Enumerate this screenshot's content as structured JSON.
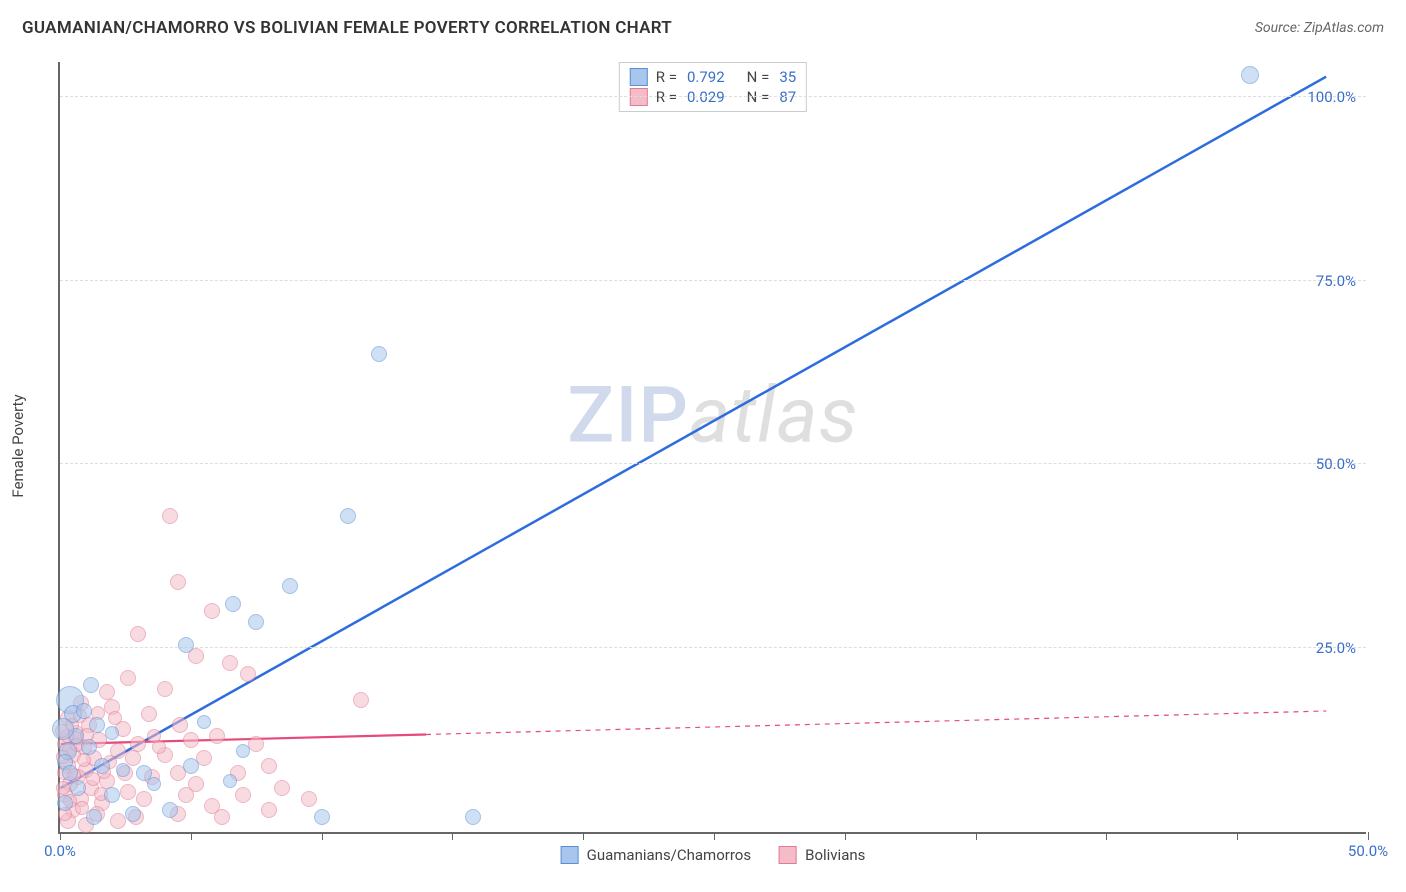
{
  "title": "GUAMANIAN/CHAMORRO VS BOLIVIAN FEMALE POVERTY CORRELATION CHART",
  "source": "Source: ZipAtlas.com",
  "ylabel": "Female Poverty",
  "watermark": {
    "part1": "ZIP",
    "part2": "atlas"
  },
  "chart": {
    "type": "scatter",
    "background_color": "#ffffff",
    "grid_color": "#dddddd",
    "axis_color": "#666666",
    "tick_label_color": "#3b6fc9",
    "xlim": [
      0,
      50
    ],
    "ylim": [
      0,
      105
    ],
    "xticks": [
      0,
      5,
      10,
      15,
      20,
      25,
      30,
      35,
      40,
      45,
      50
    ],
    "xtick_labels": {
      "0": "0.0%",
      "50": "50.0%"
    },
    "yticks": [
      25,
      50,
      75,
      100
    ],
    "ytick_labels": {
      "25": "25.0%",
      "50": "50.0%",
      "75": "75.0%",
      "100": "100.0%"
    },
    "series": [
      {
        "name": "Guamanians/Chamorros",
        "fill_color": "#a8c5ec",
        "stroke_color": "#5b8fd6",
        "fill_opacity": 0.55,
        "R": "0.792",
        "N": "35",
        "trend": {
          "x1": 0,
          "y1": 6,
          "x2": 48.5,
          "y2": 103,
          "color": "#2d6cdf",
          "width": 2.5,
          "dash_from_x": null
        },
        "points": [
          {
            "x": 45.5,
            "y": 103,
            "r": 9
          },
          {
            "x": 12.2,
            "y": 65,
            "r": 8
          },
          {
            "x": 11.0,
            "y": 43,
            "r": 8
          },
          {
            "x": 8.8,
            "y": 33.5,
            "r": 8
          },
          {
            "x": 6.6,
            "y": 31,
            "r": 8
          },
          {
            "x": 7.5,
            "y": 28.5,
            "r": 8
          },
          {
            "x": 4.8,
            "y": 25.5,
            "r": 8
          },
          {
            "x": 1.2,
            "y": 20,
            "r": 8
          },
          {
            "x": 0.4,
            "y": 18,
            "r": 14
          },
          {
            "x": 0.5,
            "y": 16,
            "r": 9
          },
          {
            "x": 0.9,
            "y": 16.5,
            "r": 8
          },
          {
            "x": 1.4,
            "y": 14.5,
            "r": 8
          },
          {
            "x": 0.6,
            "y": 13,
            "r": 8
          },
          {
            "x": 2.0,
            "y": 13.5,
            "r": 7
          },
          {
            "x": 0.3,
            "y": 11,
            "r": 9
          },
          {
            "x": 1.1,
            "y": 11.5,
            "r": 8
          },
          {
            "x": 0.2,
            "y": 9.5,
            "r": 8
          },
          {
            "x": 1.6,
            "y": 9,
            "r": 8
          },
          {
            "x": 0.4,
            "y": 8,
            "r": 8
          },
          {
            "x": 2.4,
            "y": 8.5,
            "r": 7
          },
          {
            "x": 3.2,
            "y": 8,
            "r": 8
          },
          {
            "x": 0.7,
            "y": 6,
            "r": 8
          },
          {
            "x": 2.0,
            "y": 5,
            "r": 8
          },
          {
            "x": 3.6,
            "y": 6.5,
            "r": 7
          },
          {
            "x": 5.0,
            "y": 9,
            "r": 8
          },
          {
            "x": 4.2,
            "y": 3,
            "r": 8
          },
          {
            "x": 2.8,
            "y": 2.5,
            "r": 8
          },
          {
            "x": 1.3,
            "y": 2,
            "r": 8
          },
          {
            "x": 10.0,
            "y": 2,
            "r": 8
          },
          {
            "x": 15.8,
            "y": 2,
            "r": 8
          },
          {
            "x": 6.5,
            "y": 7,
            "r": 7
          },
          {
            "x": 7.0,
            "y": 11,
            "r": 7
          },
          {
            "x": 5.5,
            "y": 15,
            "r": 7
          },
          {
            "x": 0.1,
            "y": 14,
            "r": 11
          },
          {
            "x": 0.2,
            "y": 4,
            "r": 8
          }
        ]
      },
      {
        "name": "Bolivians",
        "fill_color": "#f4bcc9",
        "stroke_color": "#e27a93",
        "fill_opacity": 0.55,
        "R": "0.029",
        "N": "87",
        "trend": {
          "x1": 0,
          "y1": 12,
          "x2": 48.5,
          "y2": 16.5,
          "color": "#e64a7a",
          "width": 2.2,
          "dash_from_x": 14
        },
        "points": [
          {
            "x": 4.2,
            "y": 43,
            "r": 8
          },
          {
            "x": 4.5,
            "y": 34,
            "r": 8
          },
          {
            "x": 5.8,
            "y": 30,
            "r": 8
          },
          {
            "x": 3.0,
            "y": 27,
            "r": 8
          },
          {
            "x": 5.2,
            "y": 24,
            "r": 8
          },
          {
            "x": 6.5,
            "y": 23,
            "r": 8
          },
          {
            "x": 2.6,
            "y": 21,
            "r": 8
          },
          {
            "x": 1.8,
            "y": 19,
            "r": 8
          },
          {
            "x": 4.0,
            "y": 19.5,
            "r": 8
          },
          {
            "x": 7.2,
            "y": 21.5,
            "r": 8
          },
          {
            "x": 0.8,
            "y": 17.5,
            "r": 8
          },
          {
            "x": 2.0,
            "y": 17,
            "r": 8
          },
          {
            "x": 3.4,
            "y": 16,
            "r": 8
          },
          {
            "x": 11.5,
            "y": 18,
            "r": 8
          },
          {
            "x": 0.3,
            "y": 15.5,
            "r": 8
          },
          {
            "x": 1.1,
            "y": 14.5,
            "r": 8
          },
          {
            "x": 2.4,
            "y": 14,
            "r": 8
          },
          {
            "x": 4.6,
            "y": 14.5,
            "r": 8
          },
          {
            "x": 6.0,
            "y": 13,
            "r": 8
          },
          {
            "x": 0.6,
            "y": 13.5,
            "r": 8
          },
          {
            "x": 1.5,
            "y": 12.5,
            "r": 8
          },
          {
            "x": 3.0,
            "y": 12,
            "r": 8
          },
          {
            "x": 5.0,
            "y": 12.5,
            "r": 8
          },
          {
            "x": 7.5,
            "y": 12,
            "r": 8
          },
          {
            "x": 0.2,
            "y": 12,
            "r": 8
          },
          {
            "x": 0.9,
            "y": 11.5,
            "r": 8
          },
          {
            "x": 2.2,
            "y": 11,
            "r": 8
          },
          {
            "x": 4.0,
            "y": 10.5,
            "r": 8
          },
          {
            "x": 0.5,
            "y": 10.5,
            "r": 8
          },
          {
            "x": 1.3,
            "y": 10,
            "r": 8
          },
          {
            "x": 2.8,
            "y": 10,
            "r": 8
          },
          {
            "x": 5.5,
            "y": 10,
            "r": 8
          },
          {
            "x": 8.0,
            "y": 9,
            "r": 8
          },
          {
            "x": 0.3,
            "y": 9,
            "r": 8
          },
          {
            "x": 1.0,
            "y": 8.5,
            "r": 8
          },
          {
            "x": 2.5,
            "y": 8,
            "r": 8
          },
          {
            "x": 4.5,
            "y": 8,
            "r": 8
          },
          {
            "x": 6.8,
            "y": 8,
            "r": 8
          },
          {
            "x": 0.7,
            "y": 7.5,
            "r": 8
          },
          {
            "x": 1.8,
            "y": 7,
            "r": 8
          },
          {
            "x": 3.5,
            "y": 7.5,
            "r": 8
          },
          {
            "x": 5.2,
            "y": 6.5,
            "r": 8
          },
          {
            "x": 8.5,
            "y": 6,
            "r": 8
          },
          {
            "x": 0.4,
            "y": 6.5,
            "r": 8
          },
          {
            "x": 1.2,
            "y": 6,
            "r": 8
          },
          {
            "x": 2.6,
            "y": 5.5,
            "r": 8
          },
          {
            "x": 4.8,
            "y": 5,
            "r": 8
          },
          {
            "x": 7.0,
            "y": 5,
            "r": 8
          },
          {
            "x": 9.5,
            "y": 4.5,
            "r": 8
          },
          {
            "x": 0.2,
            "y": 5,
            "r": 8
          },
          {
            "x": 0.8,
            "y": 4.5,
            "r": 8
          },
          {
            "x": 1.6,
            "y": 4,
            "r": 8
          },
          {
            "x": 3.2,
            "y": 4.5,
            "r": 8
          },
          {
            "x": 5.8,
            "y": 3.5,
            "r": 8
          },
          {
            "x": 8.0,
            "y": 3,
            "r": 8
          },
          {
            "x": 0.5,
            "y": 3,
            "r": 8
          },
          {
            "x": 1.4,
            "y": 2.5,
            "r": 8
          },
          {
            "x": 2.9,
            "y": 2,
            "r": 8
          },
          {
            "x": 4.5,
            "y": 2.5,
            "r": 8
          },
          {
            "x": 6.2,
            "y": 2,
            "r": 8
          },
          {
            "x": 0.3,
            "y": 1.5,
            "r": 8
          },
          {
            "x": 1.0,
            "y": 1,
            "r": 8
          },
          {
            "x": 2.2,
            "y": 1.5,
            "r": 8
          },
          {
            "x": 0.6,
            "y": 12.8,
            "r": 7
          },
          {
            "x": 1.9,
            "y": 9.5,
            "r": 7
          },
          {
            "x": 3.8,
            "y": 11.5,
            "r": 7
          },
          {
            "x": 0.15,
            "y": 8,
            "r": 7
          },
          {
            "x": 0.1,
            "y": 6,
            "r": 7
          },
          {
            "x": 0.25,
            "y": 13,
            "r": 7
          },
          {
            "x": 1.05,
            "y": 13.2,
            "r": 7
          },
          {
            "x": 2.1,
            "y": 15.5,
            "r": 7
          },
          {
            "x": 3.6,
            "y": 13,
            "r": 7
          },
          {
            "x": 0.45,
            "y": 14.5,
            "r": 7
          },
          {
            "x": 0.75,
            "y": 15.8,
            "r": 7
          },
          {
            "x": 1.45,
            "y": 16.2,
            "r": 7
          },
          {
            "x": 0.35,
            "y": 11.2,
            "r": 7
          },
          {
            "x": 0.9,
            "y": 9.8,
            "r": 7
          },
          {
            "x": 1.7,
            "y": 8.2,
            "r": 7
          },
          {
            "x": 0.55,
            "y": 7.8,
            "r": 7
          },
          {
            "x": 0.12,
            "y": 10.2,
            "r": 7
          },
          {
            "x": 0.65,
            "y": 11.8,
            "r": 7
          },
          {
            "x": 1.25,
            "y": 7.2,
            "r": 7
          },
          {
            "x": 0.4,
            "y": 4.2,
            "r": 7
          },
          {
            "x": 0.85,
            "y": 3.2,
            "r": 7
          },
          {
            "x": 1.55,
            "y": 5.2,
            "r": 7
          },
          {
            "x": 0.18,
            "y": 2.5,
            "r": 7
          },
          {
            "x": 0.08,
            "y": 13.8,
            "r": 7
          }
        ]
      }
    ]
  },
  "top_legend": {
    "rows": [
      {
        "swatch_fill": "#a8c5ec",
        "swatch_stroke": "#5b8fd6",
        "r_label": "R =",
        "r_val": "0.792",
        "n_label": "N =",
        "n_val": "35"
      },
      {
        "swatch_fill": "#f4bcc9",
        "swatch_stroke": "#e27a93",
        "r_label": "R =",
        "r_val": "0.029",
        "n_label": "N =",
        "n_val": "87"
      }
    ]
  },
  "bottom_legend": {
    "items": [
      {
        "swatch_fill": "#a8c5ec",
        "swatch_stroke": "#5b8fd6",
        "label": "Guamanians/Chamorros"
      },
      {
        "swatch_fill": "#f4bcc9",
        "swatch_stroke": "#e27a93",
        "label": "Bolivians"
      }
    ]
  }
}
